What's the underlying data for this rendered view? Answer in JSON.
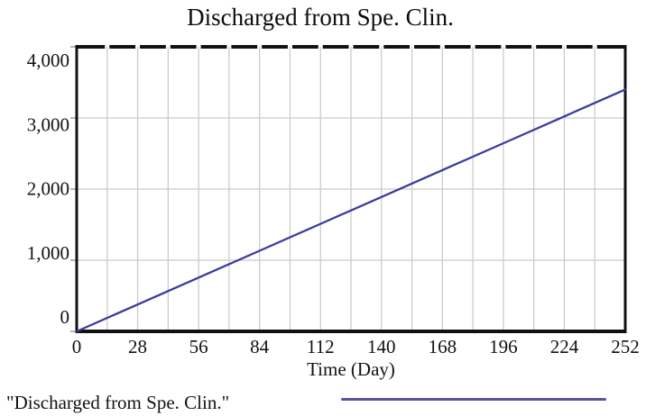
{
  "chart_data": {
    "type": "line",
    "title": "Discharged from Spe. Clin.",
    "xlabel": "Time (Day)",
    "ylabel": "",
    "xlim": [
      0,
      252
    ],
    "ylim": [
      0,
      4000
    ],
    "xticks": [
      0,
      28,
      56,
      84,
      112,
      140,
      168,
      196,
      224,
      252
    ],
    "xtick_labels": [
      "0",
      "28",
      "56",
      "84",
      "112",
      "140",
      "168",
      "196",
      "224",
      "252"
    ],
    "yticks": [
      0,
      1000,
      2000,
      3000,
      4000
    ],
    "ytick_labels": [
      "0",
      "1,000",
      "2,000",
      "3,000",
      "4,000"
    ],
    "x_minor_grid_step": 14,
    "grid": true,
    "legend_position": "bottom-left",
    "colors": {
      "grid": "#c9c9c9",
      "border": "#111111",
      "text": "#121212",
      "series_line": "#3c3c9e",
      "legend_line": "#5a51a0"
    },
    "series": [
      {
        "name": "\"Discharged from Spe. Clin.\"",
        "color": "#3c3c9e",
        "x": [
          0,
          28,
          56,
          84,
          112,
          140,
          168,
          196,
          224,
          252
        ],
        "values": [
          0,
          378,
          756,
          1133,
          1511,
          1889,
          2267,
          2644,
          3022,
          3400
        ]
      }
    ]
  }
}
